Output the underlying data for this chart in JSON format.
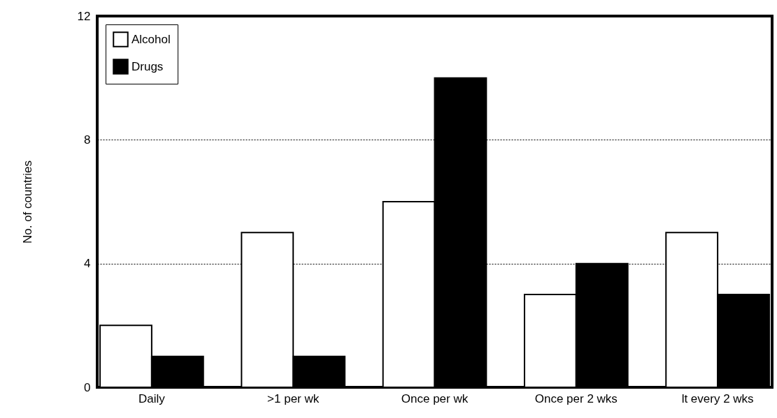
{
  "chart_data": {
    "type": "bar",
    "ylabel": "No. of countries",
    "categories": [
      "Daily",
      ">1 per wk",
      "Once per wk",
      "Once per 2 wks",
      "lt every 2 wks"
    ],
    "series": [
      {
        "name": "Alcohol",
        "color": "#ffffff",
        "values": [
          2,
          5,
          6,
          3,
          5
        ]
      },
      {
        "name": "Drugs",
        "color": "#000000",
        "values": [
          1,
          1,
          10,
          4,
          3
        ]
      }
    ],
    "ylim": [
      0,
      12
    ],
    "yticks": [
      0,
      4,
      8,
      12
    ],
    "grid": "y",
    "legend": "top left"
  }
}
